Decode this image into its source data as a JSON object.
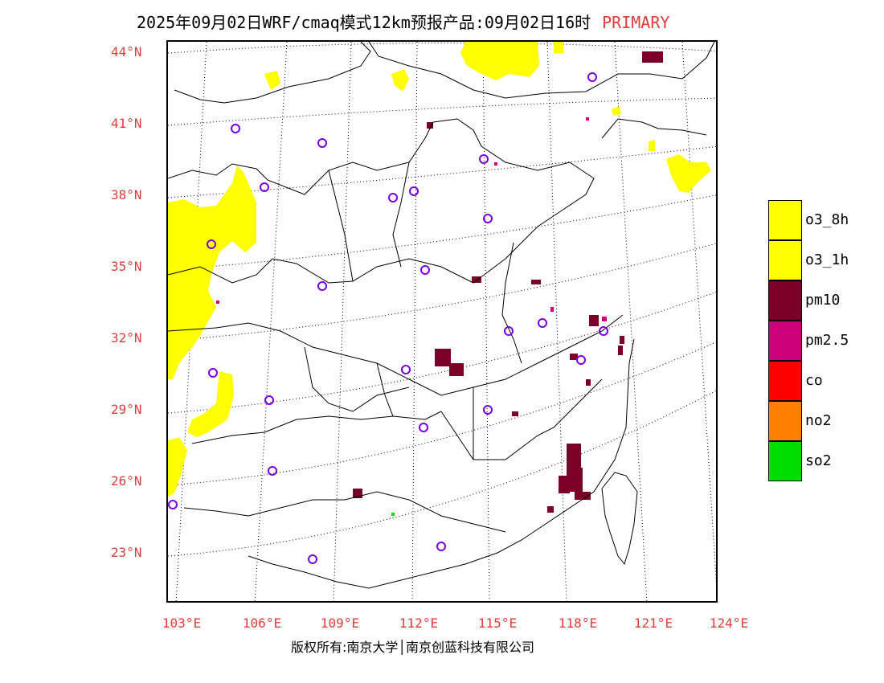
{
  "header": {
    "title": "2025年09月02日WRF/cmaq模式12km预报产品:09月02日16时",
    "tag": "PRIMARY"
  },
  "axes": {
    "lat_labels": [
      "44°N",
      "41°N",
      "38°N",
      "35°N",
      "32°N",
      "29°N",
      "26°N",
      "23°N"
    ],
    "lon_labels": [
      "103°E",
      "106°E",
      "109°E",
      "112°E",
      "115°E",
      "118°E",
      "121°E",
      "124°E"
    ]
  },
  "footer": {
    "copyright": "版权所有:南京大学│南京创蓝科技有限公司"
  },
  "legend": [
    {
      "label": "o3_8h",
      "color": "#ffff00"
    },
    {
      "label": "o3_1h",
      "color": "#ffff00"
    },
    {
      "label": "pm10",
      "color": "#7a0028"
    },
    {
      "label": "pm2.5",
      "color": "#cc0077"
    },
    {
      "label": "co",
      "color": "#ff0000"
    },
    {
      "label": "no2",
      "color": "#ff8000"
    },
    {
      "label": "so2",
      "color": "#00dd00"
    }
  ],
  "colors": {
    "accent_red": "#e03c3c",
    "city_marker": "#7a00e0",
    "o3": "#ffff00",
    "pm10": "#7a0028",
    "pm25": "#cc0077",
    "so2": "#00dd00"
  }
}
